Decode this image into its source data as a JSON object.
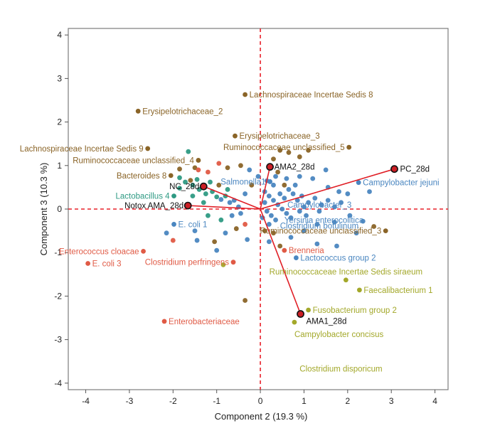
{
  "chart_data": {
    "type": "scatter",
    "xlabel": "Component 2 (19.3 %)",
    "ylabel": "Component 3 (10.3 %)",
    "xlim": [
      -4.4,
      4.3
    ],
    "ylim": [
      -4.15,
      4.15
    ],
    "xticks": [
      "-4",
      "-3",
      "-2",
      "-1",
      "0",
      "1",
      "2",
      "3",
      "4"
    ],
    "yticks": [
      "-4",
      "-3",
      "-2",
      "-1",
      "0",
      "1",
      "2",
      "3",
      "4"
    ],
    "reference_lines": {
      "x": 0,
      "y": 0,
      "style": "dashed",
      "color": "#e8202a"
    },
    "colors": {
      "brown": "#8a6427",
      "blue": "#4a86c0",
      "green": "#a3a82a",
      "red": "#e05a45",
      "teal": "#2e9a83",
      "black": "#111111",
      "vector": "#e01f26",
      "sample_fill": "#cc1f25"
    },
    "samples": [
      {
        "label": "PC_28d",
        "x": 3.07,
        "y": 0.92
      },
      {
        "label": "AMA2_28d",
        "x": 0.22,
        "y": 0.97
      },
      {
        "label": "NC_28d",
        "x": -1.3,
        "y": 0.52
      },
      {
        "label": "Notox AMA_28d",
        "x": -1.66,
        "y": 0.08
      },
      {
        "label": "AMA1_28d",
        "x": 0.92,
        "y": -2.41
      }
    ],
    "labeled_points": [
      {
        "label": "Lachnospiraceae Incertae Sedis 8",
        "x": -0.35,
        "y": 2.63,
        "group": "brown",
        "dx": 6
      },
      {
        "label": "Erysipelotrichaceae_2",
        "x": -2.8,
        "y": 2.25,
        "group": "brown",
        "dx": 6
      },
      {
        "label": "Erysipelotrichaceae_3",
        "x": -0.58,
        "y": 1.68,
        "group": "brown",
        "dx": 6
      },
      {
        "label": "Lachnospiraceae Incertae Sedis 9",
        "x": -2.58,
        "y": 1.39,
        "group": "brown",
        "dx": -6
      },
      {
        "label": "Ruminococcaceae unclassified_5",
        "x": 2.03,
        "y": 1.42,
        "group": "brown",
        "dx": -6
      },
      {
        "label": "Ruminococcaceae unclassified_4",
        "x": -1.42,
        "y": 1.12,
        "group": "brown",
        "dx": -6
      },
      {
        "label": "Bacteroides 8",
        "x": -2.05,
        "y": 0.77,
        "group": "brown",
        "dx": -6
      },
      {
        "label": "Lactobacillus 4",
        "x": -1.98,
        "y": 0.3,
        "group": "teal",
        "dx": -6
      },
      {
        "label": "Salmonella1",
        "x": 0.22,
        "y": 0.63,
        "group": "blue",
        "dx": -6
      },
      {
        "label": "Campylobacter jejuni",
        "x": 2.25,
        "y": 0.61,
        "group": "blue",
        "dx": 6
      },
      {
        "label": "E. coli 1",
        "x": -1.98,
        "y": -0.35,
        "group": "blue",
        "dx": 6
      },
      {
        "label": "Ruminococcaceae unclassified_3",
        "x": 2.87,
        "y": -0.5,
        "group": "brown",
        "dx": -6
      },
      {
        "label": "Enterococcus cloacae",
        "x": -2.68,
        "y": -0.97,
        "group": "red",
        "dx": -6
      },
      {
        "label": "Brenneria",
        "x": 0.55,
        "y": -0.95,
        "group": "red",
        "dx": 6
      },
      {
        "label": "E. coli 3",
        "x": -3.95,
        "y": -1.25,
        "group": "red",
        "dx": 6
      },
      {
        "label": "Clostridium perfringens",
        "x": -0.62,
        "y": -1.22,
        "group": "red",
        "dx": -6
      },
      {
        "label": "Lactococcus group 2",
        "x": 0.82,
        "y": -1.12,
        "group": "blue",
        "dx": 6
      },
      {
        "label": "Ruminococcaceae Incertae Sedis siraeum",
        "x": 1.96,
        "y": -1.63,
        "group": "green",
        "dx": 0,
        "dy": -12,
        "anchor": "middle"
      },
      {
        "label": "Faecalibacterium 1",
        "x": 2.27,
        "y": -1.86,
        "group": "green",
        "dx": 6
      },
      {
        "label": "Fusobacterium group 2",
        "x": 1.1,
        "y": -2.32,
        "group": "green",
        "dx": 6
      },
      {
        "label": "Enterobacteriaceae",
        "x": -2.2,
        "y": -2.58,
        "group": "red",
        "dx": 6
      },
      {
        "label": "Campylobacter concisus",
        "x": 0.78,
        "y": -2.6,
        "group": "green",
        "dx": 0,
        "dy": 17,
        "anchor": "start"
      },
      {
        "label": "Clostridium disporicum",
        "x": 0,
        "y": 0,
        "group": "green",
        "text_only": true,
        "tx": 0.9,
        "ty": -3.67
      },
      {
        "label": "Campylobacter_3",
        "x": 0,
        "y": 0,
        "group": "blue",
        "text_only": true,
        "tx": 0.62,
        "ty": 0.1
      },
      {
        "label": "Yersinia enterocolitica",
        "x": 0,
        "y": 0,
        "group": "blue",
        "text_only": true,
        "tx": 0.55,
        "ty": -0.25
      },
      {
        "label": "Clostridium botulinum",
        "x": 0,
        "y": 0,
        "group": "blue",
        "text_only": true,
        "tx": 0.45,
        "ty": -0.38
      }
    ],
    "unlabeled_points": [
      {
        "x": -1.65,
        "y": 1.32,
        "group": "teal"
      },
      {
        "x": -1.5,
        "y": 0.95,
        "group": "brown"
      },
      {
        "x": -1.42,
        "y": 0.9,
        "group": "red"
      },
      {
        "x": -1.2,
        "y": 0.85,
        "group": "red"
      },
      {
        "x": -1.85,
        "y": 0.72,
        "group": "teal"
      },
      {
        "x": -1.72,
        "y": 0.62,
        "group": "teal"
      },
      {
        "x": -1.6,
        "y": 0.66,
        "group": "brown"
      },
      {
        "x": -1.55,
        "y": 0.55,
        "group": "teal"
      },
      {
        "x": -1.4,
        "y": 0.45,
        "group": "teal"
      },
      {
        "x": -1.25,
        "y": 0.35,
        "group": "teal"
      },
      {
        "x": -1.1,
        "y": 0.4,
        "group": "teal"
      },
      {
        "x": -1.0,
        "y": 0.28,
        "group": "teal"
      },
      {
        "x": -0.9,
        "y": 0.22,
        "group": "blue"
      },
      {
        "x": -0.8,
        "y": 0.3,
        "group": "teal"
      },
      {
        "x": -0.7,
        "y": 0.15,
        "group": "blue"
      },
      {
        "x": -0.6,
        "y": 0.2,
        "group": "blue"
      },
      {
        "x": -1.3,
        "y": 0.15,
        "group": "teal"
      },
      {
        "x": -1.55,
        "y": 0.3,
        "group": "teal"
      },
      {
        "x": -1.85,
        "y": 0.48,
        "group": "teal"
      },
      {
        "x": -1.45,
        "y": 0.68,
        "group": "teal"
      },
      {
        "x": -0.95,
        "y": 0.55,
        "group": "brown"
      },
      {
        "x": -0.75,
        "y": 0.45,
        "group": "teal"
      },
      {
        "x": -0.5,
        "y": 0.05,
        "group": "blue"
      },
      {
        "x": -0.45,
        "y": -0.1,
        "group": "blue"
      },
      {
        "x": -0.65,
        "y": -0.15,
        "group": "blue"
      },
      {
        "x": -0.9,
        "y": -0.25,
        "group": "teal"
      },
      {
        "x": -1.2,
        "y": -0.15,
        "group": "teal"
      },
      {
        "x": -0.35,
        "y": -0.35,
        "group": "red"
      },
      {
        "x": -0.55,
        "y": -0.45,
        "group": "brown"
      },
      {
        "x": -0.8,
        "y": -0.55,
        "group": "blue"
      },
      {
        "x": -1.05,
        "y": -0.75,
        "group": "brown"
      },
      {
        "x": -1.5,
        "y": -0.5,
        "group": "blue"
      },
      {
        "x": -1.45,
        "y": -0.72,
        "group": "blue"
      },
      {
        "x": -2.15,
        "y": -0.55,
        "group": "blue"
      },
      {
        "x": -2.0,
        "y": -0.72,
        "group": "red"
      },
      {
        "x": -1.0,
        "y": -0.95,
        "group": "blue"
      },
      {
        "x": -0.3,
        "y": -0.7,
        "group": "blue"
      },
      {
        "x": -0.95,
        "y": 1.05,
        "group": "red"
      },
      {
        "x": -0.45,
        "y": 1.0,
        "group": "brown"
      },
      {
        "x": -0.75,
        "y": 0.95,
        "group": "brown"
      },
      {
        "x": -0.25,
        "y": 0.9,
        "group": "blue"
      },
      {
        "x": -0.05,
        "y": 0.75,
        "group": "blue"
      },
      {
        "x": -0.2,
        "y": 0.55,
        "group": "brown"
      },
      {
        "x": -0.35,
        "y": 0.35,
        "group": "blue"
      },
      {
        "x": -1.85,
        "y": 0.92,
        "group": "brown"
      },
      {
        "x": -0.35,
        "y": -2.1,
        "group": "brown"
      },
      {
        "x": -0.85,
        "y": -1.28,
        "group": "green"
      },
      {
        "x": -1.15,
        "y": 0.62,
        "group": "teal"
      },
      {
        "x": 0.1,
        "y": 0.4,
        "group": "blue"
      },
      {
        "x": 0.2,
        "y": 0.3,
        "group": "blue"
      },
      {
        "x": 0.3,
        "y": 0.2,
        "group": "blue"
      },
      {
        "x": 0.4,
        "y": 0.1,
        "group": "blue"
      },
      {
        "x": 0.5,
        "y": 0.0,
        "group": "blue"
      },
      {
        "x": 0.6,
        "y": -0.1,
        "group": "blue"
      },
      {
        "x": 0.15,
        "y": -0.05,
        "group": "blue"
      },
      {
        "x": 0.25,
        "y": -0.15,
        "group": "blue"
      },
      {
        "x": 0.35,
        "y": -0.25,
        "group": "blue"
      },
      {
        "x": 0.1,
        "y": 0.15,
        "group": "blue"
      },
      {
        "x": 0.05,
        "y": -0.2,
        "group": "blue"
      },
      {
        "x": 0.45,
        "y": 0.35,
        "group": "blue"
      },
      {
        "x": 0.55,
        "y": 0.25,
        "group": "blue"
      },
      {
        "x": 0.65,
        "y": 0.45,
        "group": "blue"
      },
      {
        "x": 0.75,
        "y": 0.35,
        "group": "blue"
      },
      {
        "x": 0.85,
        "y": 0.2,
        "group": "blue"
      },
      {
        "x": 0.95,
        "y": 0.3,
        "group": "blue"
      },
      {
        "x": 1.1,
        "y": 0.15,
        "group": "blue"
      },
      {
        "x": 1.25,
        "y": 0.25,
        "group": "blue"
      },
      {
        "x": 1.4,
        "y": 0.1,
        "group": "blue"
      },
      {
        "x": 1.55,
        "y": 0.2,
        "group": "blue"
      },
      {
        "x": 1.7,
        "y": 0.05,
        "group": "blue"
      },
      {
        "x": 1.85,
        "y": 0.15,
        "group": "blue"
      },
      {
        "x": 0.9,
        "y": -0.05,
        "group": "blue"
      },
      {
        "x": 1.05,
        "y": -0.15,
        "group": "blue"
      },
      {
        "x": 0.7,
        "y": -0.2,
        "group": "blue"
      },
      {
        "x": 0.3,
        "y": 0.55,
        "group": "blue"
      },
      {
        "x": 0.6,
        "y": 0.7,
        "group": "blue"
      },
      {
        "x": 0.9,
        "y": 0.75,
        "group": "blue"
      },
      {
        "x": 1.2,
        "y": 0.7,
        "group": "blue"
      },
      {
        "x": 0.4,
        "y": 0.85,
        "group": "brown"
      },
      {
        "x": 0.55,
        "y": 0.55,
        "group": "brown"
      },
      {
        "x": 0.3,
        "y": 1.15,
        "group": "brown"
      },
      {
        "x": 0.45,
        "y": 1.35,
        "group": "brown"
      },
      {
        "x": 0.65,
        "y": 1.3,
        "group": "brown"
      },
      {
        "x": 0.9,
        "y": 1.2,
        "group": "brown"
      },
      {
        "x": 1.1,
        "y": 1.35,
        "group": "brown"
      },
      {
        "x": 1.5,
        "y": 0.9,
        "group": "blue"
      },
      {
        "x": 0.1,
        "y": -0.5,
        "group": "brown"
      },
      {
        "x": 0.3,
        "y": -0.55,
        "group": "brown"
      },
      {
        "x": 0.2,
        "y": -0.75,
        "group": "blue"
      },
      {
        "x": 0.45,
        "y": -0.85,
        "group": "brown"
      },
      {
        "x": 0.7,
        "y": -0.65,
        "group": "blue"
      },
      {
        "x": 1.0,
        "y": -0.5,
        "group": "blue"
      },
      {
        "x": 1.3,
        "y": -0.35,
        "group": "blue"
      },
      {
        "x": 1.7,
        "y": -0.3,
        "group": "blue"
      },
      {
        "x": 2.05,
        "y": -0.15,
        "group": "blue"
      },
      {
        "x": 2.35,
        "y": -0.28,
        "group": "blue"
      },
      {
        "x": 2.6,
        "y": -0.4,
        "group": "brown"
      },
      {
        "x": 2.2,
        "y": -0.55,
        "group": "blue"
      },
      {
        "x": 1.75,
        "y": -0.85,
        "group": "blue"
      },
      {
        "x": 1.3,
        "y": -0.8,
        "group": "blue"
      },
      {
        "x": 1.55,
        "y": 0.5,
        "group": "blue"
      },
      {
        "x": 1.8,
        "y": 0.4,
        "group": "blue"
      },
      {
        "x": 2.0,
        "y": 0.35,
        "group": "blue"
      },
      {
        "x": 2.5,
        "y": 0.4,
        "group": "blue"
      },
      {
        "x": 0.8,
        "y": 0.55,
        "group": "blue"
      },
      {
        "x": 1.0,
        "y": 0.05,
        "group": "blue"
      },
      {
        "x": 1.35,
        "y": -0.05,
        "group": "blue"
      },
      {
        "x": 0.2,
        "y": -0.35,
        "group": "blue"
      },
      {
        "x": 0.15,
        "y": 0.65,
        "group": "blue"
      },
      {
        "x": 0.35,
        "y": 0.75,
        "group": "blue"
      }
    ]
  }
}
